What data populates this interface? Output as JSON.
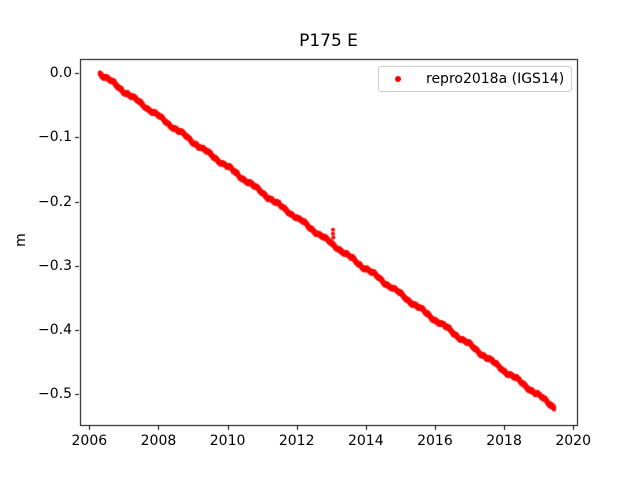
{
  "figure": {
    "background": "#ffffff",
    "axis_color": "#000000"
  },
  "chart_data": {
    "type": "scatter",
    "title": "P175 E",
    "xlabel": "",
    "ylabel": "m",
    "grid": false,
    "xlim": [
      2005.73,
      2020.11
    ],
    "ylim": [
      -0.548,
      0.022
    ],
    "x_ticks": {
      "values": [
        2006,
        2008,
        2010,
        2012,
        2014,
        2016,
        2018,
        2020
      ],
      "labels": [
        "2006",
        "2008",
        "2010",
        "2012",
        "2014",
        "2016",
        "2018",
        "2020"
      ]
    },
    "y_ticks": {
      "values": [
        0.0,
        -0.1,
        -0.2,
        -0.3,
        -0.4,
        -0.5
      ],
      "labels": [
        "0.0",
        "−0.1",
        "−0.2",
        "−0.3",
        "−0.4",
        "−0.5"
      ]
    },
    "legend": {
      "position": "upper-right",
      "border_color": "#cccccc",
      "entries": [
        {
          "label": "repro2018a (IGS14)",
          "marker": "dot",
          "color": "#ff0000"
        }
      ]
    },
    "series": [
      {
        "name": "repro2018a (IGS14)",
        "color": "#ff0000",
        "marker": "dot",
        "marker_radius_px": 2,
        "trend_m_per_yr": -0.0395,
        "points": [
          [
            2006.3,
            0.0
          ],
          [
            2006.55,
            -0.01
          ],
          [
            2006.8,
            -0.02
          ],
          [
            2007.05,
            -0.03
          ],
          [
            2007.3,
            -0.04
          ],
          [
            2007.55,
            -0.049
          ],
          [
            2007.8,
            -0.059
          ],
          [
            2008.05,
            -0.069
          ],
          [
            2008.3,
            -0.079
          ],
          [
            2008.55,
            -0.089
          ],
          [
            2008.8,
            -0.099
          ],
          [
            2009.05,
            -0.109
          ],
          [
            2009.3,
            -0.119
          ],
          [
            2009.55,
            -0.129
          ],
          [
            2009.8,
            -0.138
          ],
          [
            2010.05,
            -0.148
          ],
          [
            2010.3,
            -0.158
          ],
          [
            2010.55,
            -0.168
          ],
          [
            2010.8,
            -0.178
          ],
          [
            2011.05,
            -0.188
          ],
          [
            2011.3,
            -0.198
          ],
          [
            2011.55,
            -0.208
          ],
          [
            2011.8,
            -0.217
          ],
          [
            2012.05,
            -0.227
          ],
          [
            2012.3,
            -0.237
          ],
          [
            2012.55,
            -0.247
          ],
          [
            2012.8,
            -0.257
          ],
          [
            2013.05,
            -0.267
          ],
          [
            2013.3,
            -0.277
          ],
          [
            2013.55,
            -0.287
          ],
          [
            2013.8,
            -0.297
          ],
          [
            2014.05,
            -0.306
          ],
          [
            2014.3,
            -0.316
          ],
          [
            2014.55,
            -0.326
          ],
          [
            2014.8,
            -0.336
          ],
          [
            2015.05,
            -0.346
          ],
          [
            2015.3,
            -0.356
          ],
          [
            2015.55,
            -0.366
          ],
          [
            2015.8,
            -0.376
          ],
          [
            2016.05,
            -0.386
          ],
          [
            2016.3,
            -0.395
          ],
          [
            2016.55,
            -0.405
          ],
          [
            2016.8,
            -0.415
          ],
          [
            2017.05,
            -0.425
          ],
          [
            2017.3,
            -0.435
          ],
          [
            2017.55,
            -0.445
          ],
          [
            2017.8,
            -0.455
          ],
          [
            2018.05,
            -0.465
          ],
          [
            2018.3,
            -0.474
          ],
          [
            2018.55,
            -0.484
          ],
          [
            2018.8,
            -0.494
          ],
          [
            2019.05,
            -0.504
          ],
          [
            2019.3,
            -0.514
          ],
          [
            2019.45,
            -0.52
          ]
        ],
        "outliers": [
          [
            2013.05,
            -0.244
          ],
          [
            2013.05,
            -0.25
          ],
          [
            2013.06,
            -0.256
          ]
        ]
      }
    ]
  }
}
